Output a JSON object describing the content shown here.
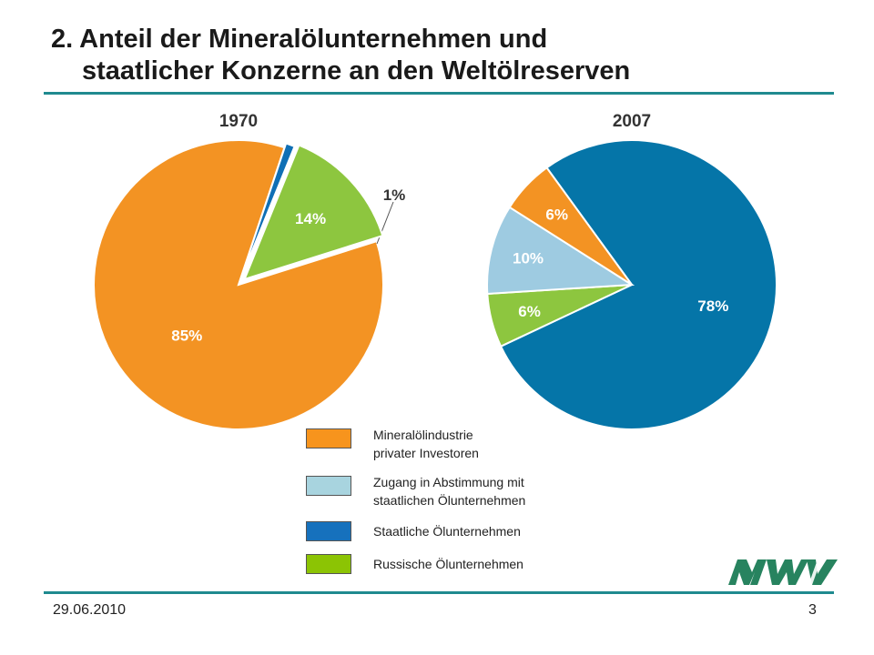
{
  "slide": {
    "title_line1": "2. Anteil der Mineralölunternehmen und",
    "title_line2": "staatlicher Konzerne an den Weltölreserven",
    "footer_date": "29.06.2010",
    "page_number": "3",
    "logo_text": "MWV",
    "accent_color": "#1f8a8f"
  },
  "chart_data": [
    {
      "type": "pie",
      "title": "1970",
      "slices": [
        {
          "label": "Mineralölindustrie privater Investoren",
          "value": 85,
          "value_label": "85%",
          "color": "#f39323"
        },
        {
          "label": "Staatliche Ölunternehmen",
          "value": 1,
          "value_label": "1%",
          "color": "#0f6fb5"
        },
        {
          "label": "Russische Ölunternehmen",
          "value": 14,
          "value_label": "14%",
          "color": "#8dc63f"
        }
      ]
    },
    {
      "type": "pie",
      "title": "2007",
      "slices": [
        {
          "label": "Staatliche Ölunternehmen",
          "value": 78,
          "value_label": "78%",
          "color": "#0575a8"
        },
        {
          "label": "Russische Ölunternehmen",
          "value": 6,
          "value_label": "6%",
          "color": "#8dc63f"
        },
        {
          "label": "Zugang in Abstimmung mit staatlichen Ölunternehmen",
          "value": 10,
          "value_label": "10%",
          "color": "#9ecbe1"
        },
        {
          "label": "Mineralölindustrie privater Investoren",
          "value": 6,
          "value_label": "6%",
          "color": "#f39323"
        }
      ]
    }
  ],
  "legend": [
    {
      "line1": "Mineralölindustrie",
      "line2": "privater Investoren",
      "color": "#f7941d"
    },
    {
      "line1": "Zugang in Abstimmung mit",
      "line2": "staatlichen Ölunternehmen",
      "color": "#a8d4df"
    },
    {
      "line1": "Staatliche Ölunternehmen",
      "line2": "",
      "color": "#1671bd"
    },
    {
      "line1": "Russische Ölunternehmen",
      "line2": "",
      "color": "#8cc404"
    }
  ]
}
